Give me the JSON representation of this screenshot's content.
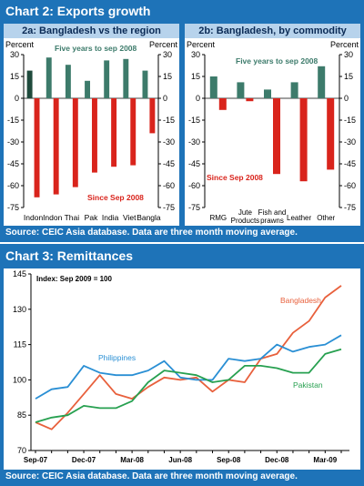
{
  "chart2": {
    "title": "Chart 2: Exports growth",
    "source": "Source: CEIC Asia database.  Data are three month moving average."
  },
  "chart3": {
    "title": "Chart 3: Remittances",
    "source": "Source: CEIC Asia database.  Data are three month moving average."
  },
  "colors": {
    "panel": "#1e73b8",
    "five_year": "#3d7b6b",
    "since_sep": "#d9241c",
    "bangladesh_line": "#e8603c",
    "philippines_line": "#2a8fd4",
    "pakistan_line": "#27a050"
  },
  "chart_data": [
    {
      "type": "bar",
      "title": "2a: Bangladesh vs the region",
      "ylabel_left": "Percent",
      "ylabel_right": "Percent",
      "ylim": [
        -75,
        30
      ],
      "yticks": [
        30,
        15,
        0,
        -15,
        -30,
        -45,
        -60,
        -75
      ],
      "yticks_right": [
        30,
        15,
        0,
        -15,
        -30,
        -45,
        -60,
        -75
      ],
      "categories": [
        "Indon",
        "Indon",
        "Thai",
        "Pak",
        "India",
        "Viet",
        "Bangla"
      ],
      "series": [
        {
          "name": "Five years to sep 2008",
          "values": [
            19,
            28,
            23,
            12,
            26,
            27,
            19
          ]
        },
        {
          "name": "Since Sep 2008",
          "values": [
            -68,
            -66,
            -61,
            -51,
            -47,
            -46,
            -24
          ]
        }
      ]
    },
    {
      "type": "bar",
      "title": "2b: Bangladesh, by commodity",
      "ylabel_left": "Percent",
      "ylabel_right": "Percent",
      "ylim": [
        -75,
        30
      ],
      "yticks": [
        30,
        15,
        0,
        -15,
        -30,
        -45,
        -60,
        -75
      ],
      "yticks_right": [
        30,
        15,
        0,
        -15,
        -30,
        -45,
        -60,
        -75
      ],
      "categories": [
        "RMG",
        "Jute Products",
        "Fish and prawns",
        "Leather",
        "Other"
      ],
      "series": [
        {
          "name": "Five years to sep 2008",
          "values": [
            15,
            11,
            6,
            11,
            22
          ]
        },
        {
          "name": "Since Sep 2008",
          "values": [
            -8,
            -2,
            -52,
            -57,
            -49
          ]
        }
      ]
    },
    {
      "type": "line",
      "annotation": "Index: Sep 2009 = 100",
      "ylim": [
        70,
        145
      ],
      "yticks": [
        70,
        85,
        100,
        115,
        130,
        145
      ],
      "xticks": [
        "Sep-07",
        "Dec-07",
        "Mar-08",
        "Jun-08",
        "Sep-08",
        "Dec-08",
        "Mar-09"
      ],
      "x": [
        "Sep-07",
        "Oct-07",
        "Nov-07",
        "Dec-07",
        "Jan-08",
        "Feb-08",
        "Mar-08",
        "Apr-08",
        "May-08",
        "Jun-08",
        "Jul-08",
        "Aug-08",
        "Sep-08",
        "Oct-08",
        "Nov-08",
        "Dec-08",
        "Jan-09",
        "Feb-09",
        "Mar-09",
        "Apr-09"
      ],
      "series": [
        {
          "name": "Bangladesh",
          "values": [
            82,
            79,
            86,
            94,
            102,
            94,
            92,
            97,
            101,
            100,
            101,
            95,
            100,
            99,
            109,
            111,
            120,
            125,
            135,
            140
          ]
        },
        {
          "name": "Philippines",
          "values": [
            92,
            96,
            97,
            106,
            103,
            102,
            102,
            104,
            108,
            101,
            100,
            100,
            109,
            108,
            109,
            115,
            112,
            114,
            115,
            119
          ]
        },
        {
          "name": "Pakistan",
          "values": [
            82,
            84,
            85,
            89,
            88,
            88,
            91,
            99,
            104,
            103,
            102,
            99,
            100,
            106,
            106,
            105,
            103,
            103,
            111,
            113
          ]
        }
      ]
    }
  ]
}
